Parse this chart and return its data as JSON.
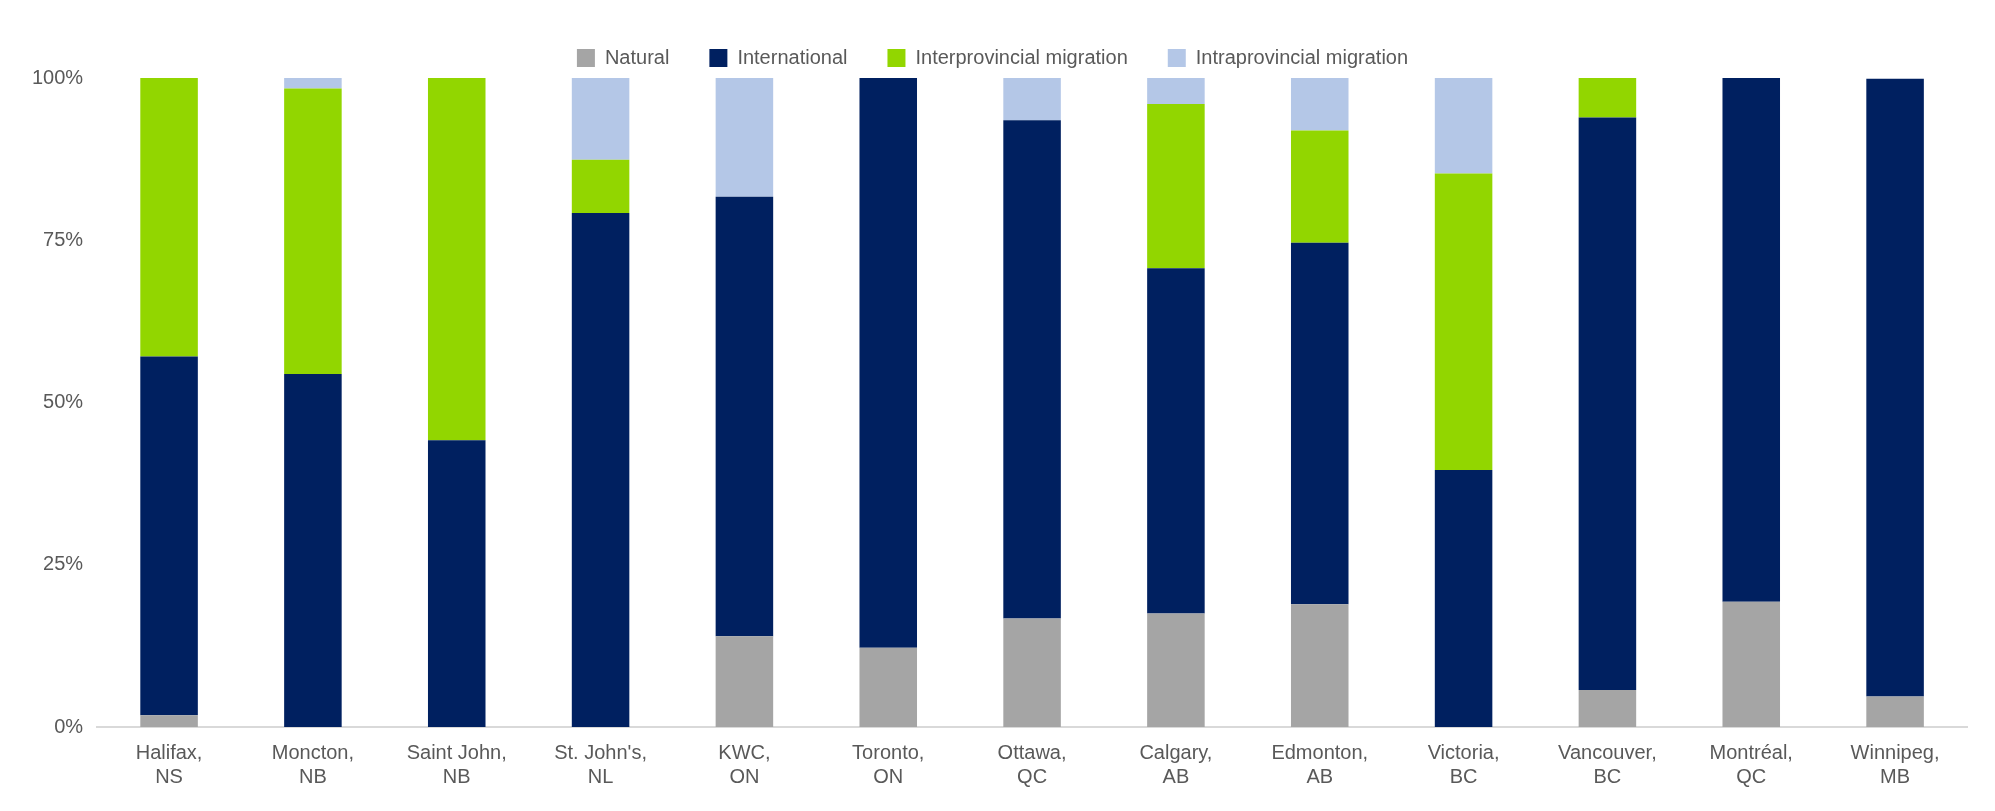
{
  "chart_data": {
    "type": "bar",
    "stacked": true,
    "legend": "top",
    "grid": false,
    "categories": [
      "Halifax, NS",
      "Moncton, NB",
      "Saint John, NB",
      "St. John's, NL",
      "KWC, ON",
      "Toronto, ON",
      "Ottawa, QC",
      "Calgary, AB",
      "Edmonton, AB",
      "Victoria, BC",
      "Vancouver, BC",
      "Montréal, QC",
      "Winnipeg, MB"
    ],
    "ylim": [
      0,
      100
    ],
    "yticks": [
      {
        "value": 0,
        "label": "0%"
      },
      {
        "value": 25,
        "label": "25%"
      },
      {
        "value": 50,
        "label": "50%"
      },
      {
        "value": 75,
        "label": "75%"
      },
      {
        "value": 100,
        "label": "100%"
      }
    ],
    "series": [
      {
        "name": "Natural",
        "color": "#a5a5a5",
        "values": [
          1.8,
          0,
          0,
          0,
          14.0,
          12.2,
          16.7,
          17.5,
          18.9,
          0,
          5.7,
          19.3,
          4.7
        ]
      },
      {
        "name": "International",
        "color": "#002060",
        "values": [
          55.3,
          54.4,
          44.2,
          79.2,
          67.7,
          87.8,
          76.8,
          53.2,
          55.7,
          39.6,
          88.2,
          80.7,
          95.2
        ]
      },
      {
        "name": "Interprovincial migration",
        "color": "#92d600",
        "values": [
          42.9,
          44.0,
          55.8,
          8.2,
          0,
          0,
          0,
          25.3,
          17.3,
          45.7,
          6.1,
          0,
          0
        ]
      },
      {
        "name": "Intraprovincial migration",
        "color": "#b4c7e7",
        "values": [
          0,
          1.6,
          0,
          12.6,
          18.3,
          0,
          6.5,
          4.0,
          8.1,
          14.7,
          0,
          0,
          0
        ]
      }
    ]
  }
}
